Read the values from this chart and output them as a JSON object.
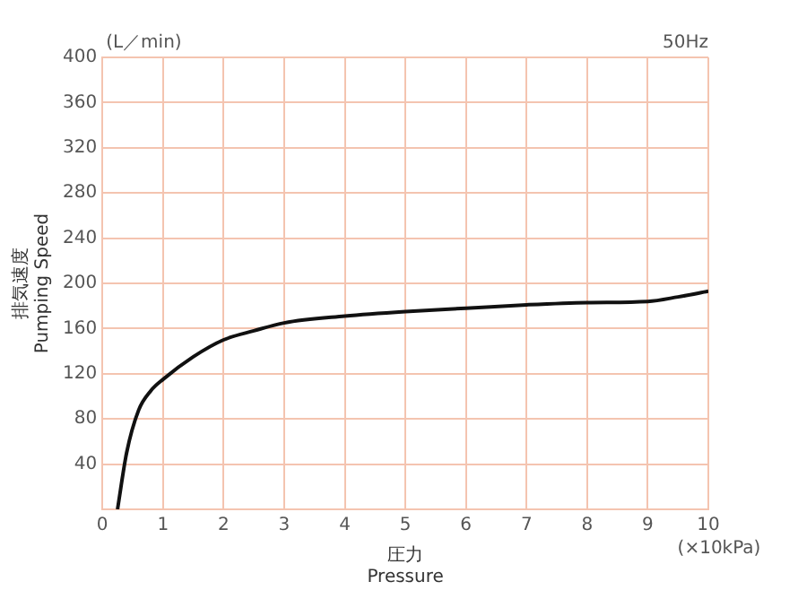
{
  "chart_data": {
    "type": "line",
    "xlabel": "圧力\nPressure",
    "ylabel": "排気速度\nPumping Speed",
    "annotations": [
      "(L／min)",
      "50Hz",
      "(×10kPa)"
    ],
    "series": [
      {
        "color": "#111111",
        "x": [
          0.25,
          0.4,
          0.6,
          0.8,
          1,
          1.5,
          2,
          2.5,
          3,
          4,
          5,
          6,
          7,
          8,
          9,
          9.5,
          10
        ],
        "values": [
          0,
          50,
          88,
          105,
          115,
          135,
          150,
          158,
          165,
          171,
          175,
          178,
          181,
          183,
          184,
          188,
          193
        ]
      }
    ],
    "xlim": [
      0,
      10
    ],
    "xticks": [
      0,
      1,
      2,
      3,
      4,
      5,
      6,
      7,
      8,
      9,
      10
    ],
    "ylim": [
      0,
      400
    ],
    "yticks": [
      {
        "value": 0,
        "label": null
      },
      40,
      80,
      120,
      160,
      200,
      240,
      280,
      320,
      360,
      400
    ],
    "grid": true,
    "legend": false,
    "marker": "none",
    "line_style": "solid"
  }
}
